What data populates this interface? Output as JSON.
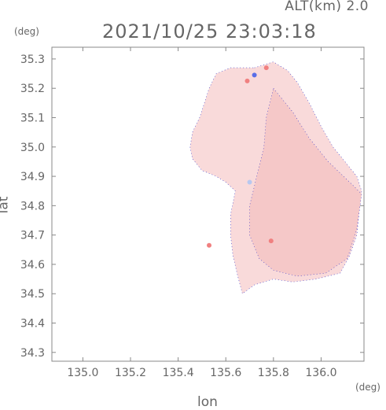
{
  "header": {
    "altitude": "ALT(km) 2.0",
    "timestamp": "2021/10/25 23:03:18"
  },
  "chart_data": {
    "type": "heatmap",
    "title": "2021/10/25 23:03:18",
    "subtitle": "ALT(km) 2.0",
    "xlabel": "lon",
    "ylabel": "lat",
    "xunit": "(deg)",
    "yunit": "(deg)",
    "xlim": [
      134.87,
      136.18
    ],
    "ylim": [
      34.27,
      35.34
    ],
    "xticks": [
      135.0,
      135.2,
      135.4,
      135.6,
      135.8,
      136.0
    ],
    "xtick_labels": [
      "135.0",
      "135.2",
      "135.4",
      "135.6",
      "135.8",
      "136.0"
    ],
    "yticks": [
      34.3,
      34.4,
      34.5,
      34.6,
      34.7,
      34.8,
      34.9,
      35.0,
      35.1,
      35.2,
      35.3
    ],
    "ytick_labels": [
      "34.3",
      "34.4",
      "34.5",
      "34.6",
      "34.7",
      "34.8",
      "34.9",
      "35.0",
      "35.1",
      "35.2",
      "35.3"
    ],
    "grid": false,
    "colors": {
      "field_main": "#f9dada",
      "field_dark": "#f5c8c8",
      "warm_spot": "#f08080",
      "cool_spot": "#b8c8f0",
      "blue_spot": "#5a6ee8",
      "edge": "#3030c8"
    },
    "regions": [
      {
        "name": "main",
        "color_key": "field_main",
        "points": [
          [
            135.72,
            35.27
          ],
          [
            135.8,
            35.29
          ],
          [
            135.86,
            35.26
          ],
          [
            135.9,
            35.22
          ],
          [
            135.95,
            35.15
          ],
          [
            136.0,
            35.07
          ],
          [
            136.05,
            35.0
          ],
          [
            136.1,
            34.95
          ],
          [
            136.15,
            34.9
          ],
          [
            136.17,
            34.85
          ],
          [
            136.16,
            34.78
          ],
          [
            136.15,
            34.7
          ],
          [
            136.12,
            34.63
          ],
          [
            136.08,
            34.57
          ],
          [
            135.98,
            34.55
          ],
          [
            135.88,
            34.54
          ],
          [
            135.8,
            34.55
          ],
          [
            135.72,
            34.53
          ],
          [
            135.67,
            34.5
          ],
          [
            135.65,
            34.56
          ],
          [
            135.63,
            34.63
          ],
          [
            135.62,
            34.7
          ],
          [
            135.62,
            34.77
          ],
          [
            135.64,
            34.85
          ],
          [
            135.6,
            34.88
          ],
          [
            135.56,
            34.9
          ],
          [
            135.5,
            34.92
          ],
          [
            135.46,
            34.96
          ],
          [
            135.45,
            35.0
          ],
          [
            135.46,
            35.05
          ],
          [
            135.49,
            35.1
          ],
          [
            135.51,
            35.15
          ],
          [
            135.53,
            35.2
          ],
          [
            135.56,
            35.25
          ],
          [
            135.62,
            35.27
          ]
        ]
      },
      {
        "name": "east-darker",
        "color_key": "field_dark",
        "points": [
          [
            135.8,
            35.2
          ],
          [
            135.88,
            35.12
          ],
          [
            135.95,
            35.03
          ],
          [
            136.03,
            34.95
          ],
          [
            136.12,
            34.88
          ],
          [
            136.17,
            34.84
          ],
          [
            136.15,
            34.72
          ],
          [
            136.11,
            34.62
          ],
          [
            136.02,
            34.57
          ],
          [
            135.9,
            34.56
          ],
          [
            135.8,
            34.58
          ],
          [
            135.74,
            34.62
          ],
          [
            135.7,
            34.7
          ],
          [
            135.7,
            34.8
          ],
          [
            135.73,
            34.9
          ],
          [
            135.76,
            35.0
          ],
          [
            135.77,
            35.1
          ]
        ]
      }
    ],
    "markers": [
      {
        "lon": 135.72,
        "lat": 35.245,
        "color_key": "blue_spot",
        "r": 1
      },
      {
        "lon": 135.69,
        "lat": 35.225,
        "color_key": "warm_spot",
        "r": 1
      },
      {
        "lon": 135.77,
        "lat": 35.27,
        "color_key": "warm_spot",
        "r": 1
      },
      {
        "lon": 135.7,
        "lat": 34.88,
        "color_key": "cool_spot",
        "r": 1
      },
      {
        "lon": 135.79,
        "lat": 34.68,
        "color_key": "warm_spot",
        "r": 1
      },
      {
        "lon": 135.53,
        "lat": 34.665,
        "color_key": "warm_spot",
        "r": 1
      }
    ]
  }
}
